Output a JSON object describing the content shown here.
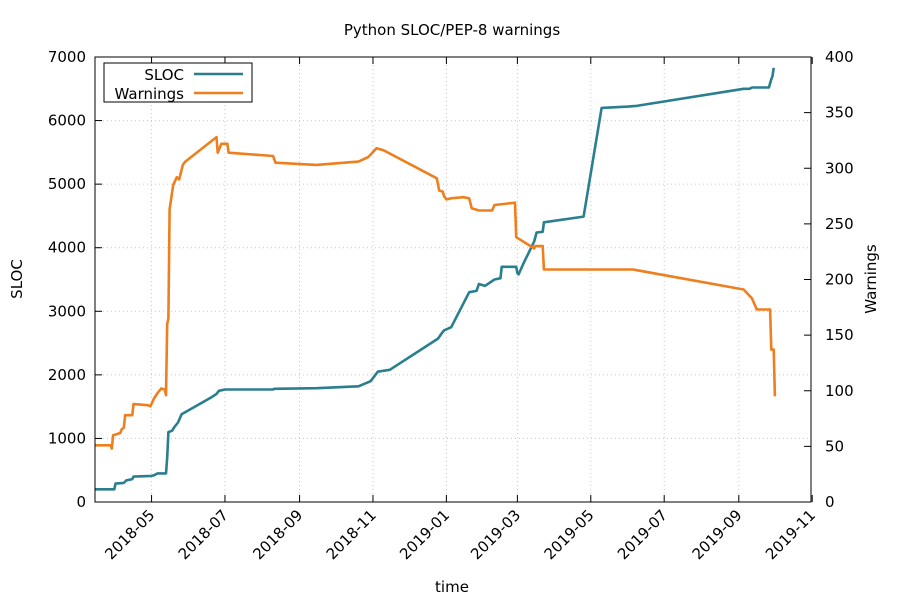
{
  "chart_data": {
    "type": "line",
    "title": "Python SLOC/PEP-8 warnings",
    "xlabel": "time",
    "ylabel_left": "SLOC",
    "ylabel_right": "Warnings",
    "xlim": [
      "2018-03-15",
      "2019-10-31"
    ],
    "ylim_left": [
      0,
      7000
    ],
    "ylim_right": [
      0,
      400
    ],
    "yticks_left": [
      0,
      1000,
      2000,
      3000,
      4000,
      5000,
      6000,
      7000
    ],
    "yticks_right": [
      0,
      50,
      100,
      150,
      200,
      250,
      300,
      350,
      400
    ],
    "xticks": [
      "2018-05",
      "2018-07",
      "2018-09",
      "2018-11",
      "2019-01",
      "2019-03",
      "2019-05",
      "2019-07",
      "2019-09",
      "2019-11"
    ],
    "grid": true,
    "legend_position": "top-left",
    "series": [
      {
        "name": "SLOC",
        "axis": "left",
        "color": "#2a7f8e",
        "points": [
          [
            "2018-03-15",
            200
          ],
          [
            "2018-03-31",
            200
          ],
          [
            "2018-04-01",
            290
          ],
          [
            "2018-04-08",
            300
          ],
          [
            "2018-04-10",
            340
          ],
          [
            "2018-04-15",
            360
          ],
          [
            "2018-04-16",
            400
          ],
          [
            "2018-05-01",
            410
          ],
          [
            "2018-05-03",
            420
          ],
          [
            "2018-05-06",
            450
          ],
          [
            "2018-05-13",
            450
          ],
          [
            "2018-05-14",
            700
          ],
          [
            "2018-05-15",
            1100
          ],
          [
            "2018-05-18",
            1120
          ],
          [
            "2018-05-20",
            1180
          ],
          [
            "2018-05-23",
            1250
          ],
          [
            "2018-05-26",
            1380
          ],
          [
            "2018-06-20",
            1650
          ],
          [
            "2018-06-24",
            1700
          ],
          [
            "2018-06-26",
            1750
          ],
          [
            "2018-07-01",
            1770
          ],
          [
            "2018-08-10",
            1770
          ],
          [
            "2018-08-11",
            1780
          ],
          [
            "2018-09-15",
            1790
          ],
          [
            "2018-10-20",
            1820
          ],
          [
            "2018-10-30",
            1900
          ],
          [
            "2018-11-05",
            2050
          ],
          [
            "2018-11-15",
            2080
          ],
          [
            "2018-12-25",
            2570
          ],
          [
            "2018-12-28",
            2650
          ],
          [
            "2018-12-30",
            2700
          ],
          [
            "2019-01-05",
            2750
          ],
          [
            "2019-01-20",
            3300
          ],
          [
            "2019-01-26",
            3320
          ],
          [
            "2019-01-28",
            3430
          ],
          [
            "2019-02-02",
            3400
          ],
          [
            "2019-02-10",
            3500
          ],
          [
            "2019-02-15",
            3520
          ],
          [
            "2019-02-16",
            3700
          ],
          [
            "2019-02-28",
            3700
          ],
          [
            "2019-03-01",
            3600
          ],
          [
            "2019-03-02",
            3580
          ],
          [
            "2019-03-06",
            3750
          ],
          [
            "2019-03-15",
            4100
          ],
          [
            "2019-03-17",
            4240
          ],
          [
            "2019-03-22",
            4250
          ],
          [
            "2019-03-23",
            4400
          ],
          [
            "2019-04-25",
            4490
          ],
          [
            "2019-05-10",
            6200
          ],
          [
            "2019-06-01",
            6220
          ],
          [
            "2019-06-08",
            6230
          ],
          [
            "2019-09-05",
            6500
          ],
          [
            "2019-09-10",
            6500
          ],
          [
            "2019-09-12",
            6520
          ],
          [
            "2019-09-26",
            6520
          ],
          [
            "2019-09-28",
            6650
          ],
          [
            "2019-09-29",
            6700
          ],
          [
            "2019-09-30",
            6830
          ]
        ]
      },
      {
        "name": "Warnings",
        "axis": "right",
        "color": "#ee7f1f",
        "points": [
          [
            "2018-03-15",
            51
          ],
          [
            "2018-03-28",
            51
          ],
          [
            "2018-03-29",
            48
          ],
          [
            "2018-03-30",
            60
          ],
          [
            "2018-04-05",
            62
          ],
          [
            "2018-04-06",
            65
          ],
          [
            "2018-04-08",
            67
          ],
          [
            "2018-04-09",
            78
          ],
          [
            "2018-04-15",
            78
          ],
          [
            "2018-04-16",
            88
          ],
          [
            "2018-04-28",
            87
          ],
          [
            "2018-04-30",
            86
          ],
          [
            "2018-05-03",
            93
          ],
          [
            "2018-05-06",
            98
          ],
          [
            "2018-05-09",
            102
          ],
          [
            "2018-05-12",
            101
          ],
          [
            "2018-05-13",
            96
          ],
          [
            "2018-05-14",
            160
          ],
          [
            "2018-05-15",
            165
          ],
          [
            "2018-05-16",
            263
          ],
          [
            "2018-05-19",
            285
          ],
          [
            "2018-05-22",
            292
          ],
          [
            "2018-05-24",
            290
          ],
          [
            "2018-05-27",
            303
          ],
          [
            "2018-05-29",
            306
          ],
          [
            "2018-06-24",
            328
          ],
          [
            "2018-06-25",
            314
          ],
          [
            "2018-06-28",
            322
          ],
          [
            "2018-07-03",
            322
          ],
          [
            "2018-07-04",
            314
          ],
          [
            "2018-08-10",
            311
          ],
          [
            "2018-08-12",
            305
          ],
          [
            "2018-09-15",
            303
          ],
          [
            "2018-10-20",
            306
          ],
          [
            "2018-10-28",
            310
          ],
          [
            "2018-11-04",
            318
          ],
          [
            "2018-11-10",
            316
          ],
          [
            "2018-12-24",
            291
          ],
          [
            "2018-12-26",
            280
          ],
          [
            "2018-12-29",
            279
          ],
          [
            "2018-12-30",
            275
          ],
          [
            "2019-01-01",
            272
          ],
          [
            "2019-01-05",
            273
          ],
          [
            "2019-01-15",
            274
          ],
          [
            "2019-01-20",
            273
          ],
          [
            "2019-01-22",
            264
          ],
          [
            "2019-01-28",
            262
          ],
          [
            "2019-02-08",
            262
          ],
          [
            "2019-02-10",
            267
          ],
          [
            "2019-02-27",
            269
          ],
          [
            "2019-02-28",
            238
          ],
          [
            "2019-03-15",
            228
          ],
          [
            "2019-03-16",
            230
          ],
          [
            "2019-03-22",
            230
          ],
          [
            "2019-03-23",
            209
          ],
          [
            "2019-06-05",
            209
          ],
          [
            "2019-09-05",
            191
          ],
          [
            "2019-09-12",
            183
          ],
          [
            "2019-09-16",
            173
          ],
          [
            "2019-09-27",
            173
          ],
          [
            "2019-09-28",
            137
          ],
          [
            "2019-09-30",
            137
          ],
          [
            "2019-10-01",
            95
          ]
        ]
      }
    ]
  }
}
